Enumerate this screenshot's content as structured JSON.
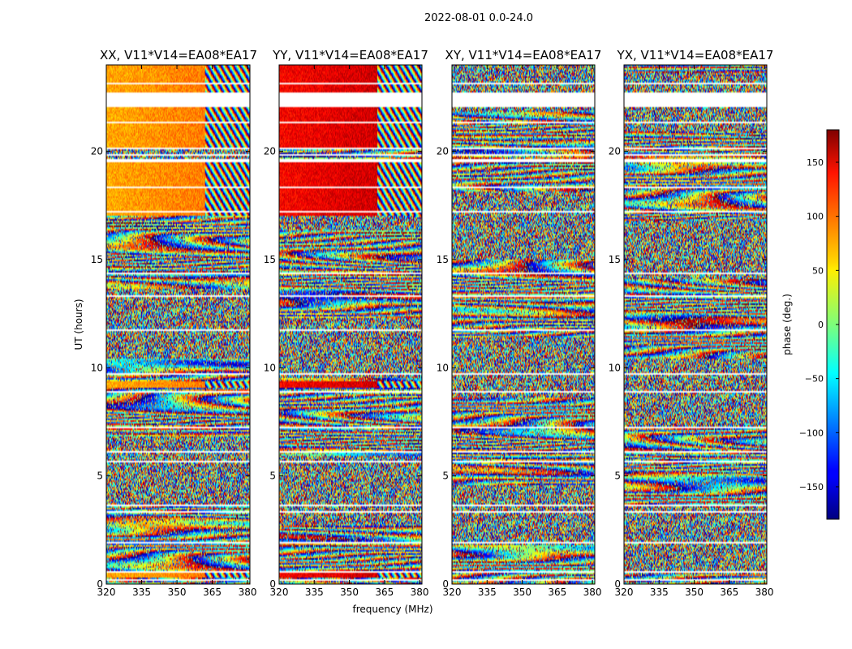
{
  "chart_data": {
    "type": "heatmap",
    "suptitle": "2022-08-01 0.0-24.0",
    "panels": [
      {
        "title": "XX, V11*V14=EA08*EA17",
        "pol": "XX"
      },
      {
        "title": "YY, V11*V14=EA08*EA17",
        "pol": "YY"
      },
      {
        "title": "XY, V11*V14=EA08*EA17",
        "pol": "XY"
      },
      {
        "title": "YX, V11*V14=EA08*EA17",
        "pol": "YX"
      }
    ],
    "xlabel": "frequency (MHz)",
    "ylabel": "UT (hours)",
    "xlim": [
      320,
      381
    ],
    "ylim": [
      0,
      24
    ],
    "xticks": [
      320,
      335,
      350,
      365,
      380
    ],
    "yticks": [
      0,
      5,
      10,
      15,
      20
    ],
    "colorbar": {
      "label": "phase (deg.)",
      "range": [
        -180,
        180
      ],
      "ticks": [
        -150,
        -100,
        -50,
        0,
        50,
        100,
        150
      ],
      "colormap": "jet"
    },
    "flagged_time_ranges_hours": [
      [
        0.12,
        0.22
      ],
      [
        0.55,
        0.62
      ],
      [
        1.9,
        1.96
      ],
      [
        3.3,
        3.36
      ],
      [
        3.6,
        3.66
      ],
      [
        5.6,
        5.68
      ],
      [
        6.1,
        6.18
      ],
      [
        7.2,
        7.26
      ],
      [
        8.85,
        8.9
      ],
      [
        9.7,
        9.75
      ],
      [
        11.7,
        11.76
      ],
      [
        13.3,
        13.36
      ],
      [
        14.35,
        14.4
      ],
      [
        16.55,
        16.6
      ],
      [
        17.2,
        17.24
      ],
      [
        17.45,
        17.5
      ],
      [
        17.75,
        17.79
      ],
      [
        18.05,
        18.1
      ],
      [
        18.3,
        18.34
      ],
      [
        18.95,
        19.0
      ],
      [
        19.5,
        19.65
      ],
      [
        19.82,
        19.9
      ],
      [
        20.1,
        20.2
      ],
      [
        20.4,
        20.42
      ],
      [
        21.3,
        21.35
      ],
      [
        22.05,
        22.7
      ],
      [
        23.1,
        23.15
      ]
    ],
    "coherent_time_ranges_hours": [
      [
        0.3,
        0.55
      ],
      [
        9.1,
        9.35
      ],
      [
        17.0,
        19.5
      ],
      [
        20.2,
        21.3
      ],
      [
        21.4,
        22.05
      ],
      [
        22.7,
        24.0
      ]
    ],
    "coherent_phase_deg": {
      "XX": 75,
      "YY": 135,
      "XY": null,
      "YX": null
    },
    "wrap_start_mhz": 362
  }
}
